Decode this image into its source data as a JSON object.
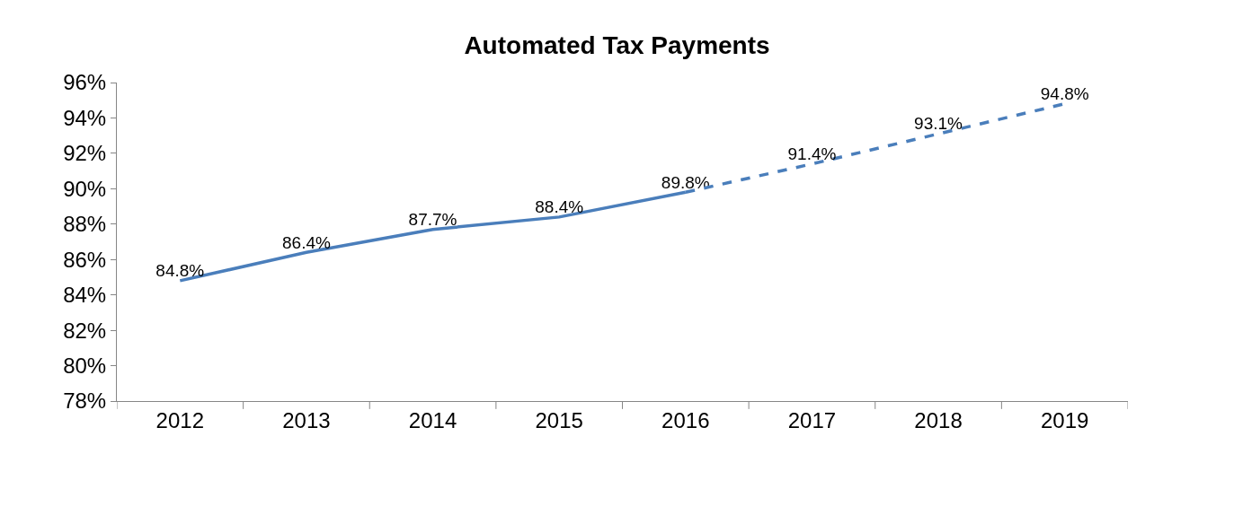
{
  "chart_data": {
    "type": "line",
    "title": "Automated Tax Payments",
    "categories": [
      "2012",
      "2013",
      "2014",
      "2015",
      "2016",
      "2017",
      "2018",
      "2019"
    ],
    "series": [
      {
        "color": "#4a7ebb",
        "line_style": "solid",
        "values": [
          84.8,
          86.4,
          87.7,
          88.4,
          89.8,
          null,
          null,
          null
        ],
        "value_labels": [
          "84.8%",
          "86.4%",
          "87.7%",
          "88.4%",
          "89.8%",
          null,
          null,
          null
        ]
      },
      {
        "color": "#4a7ebb",
        "line_style": "dashed",
        "values": [
          null,
          null,
          null,
          null,
          89.8,
          91.4,
          93.1,
          94.8
        ],
        "value_labels": [
          null,
          null,
          null,
          null,
          null,
          "91.4%",
          "93.1%",
          "94.8%"
        ]
      }
    ],
    "ylim": [
      78,
      96
    ],
    "yticks": [
      {
        "value": 78,
        "label": "78%"
      },
      {
        "value": 80,
        "label": "80%"
      },
      {
        "value": 82,
        "label": "82%"
      },
      {
        "value": 84,
        "label": "84%"
      },
      {
        "value": 86,
        "label": "86%"
      },
      {
        "value": 88,
        "label": "88%"
      },
      {
        "value": 90,
        "label": "90%"
      },
      {
        "value": 92,
        "label": "92%"
      },
      {
        "value": 94,
        "label": "94%"
      },
      {
        "value": 96,
        "label": "96%"
      }
    ],
    "marker": "none"
  }
}
